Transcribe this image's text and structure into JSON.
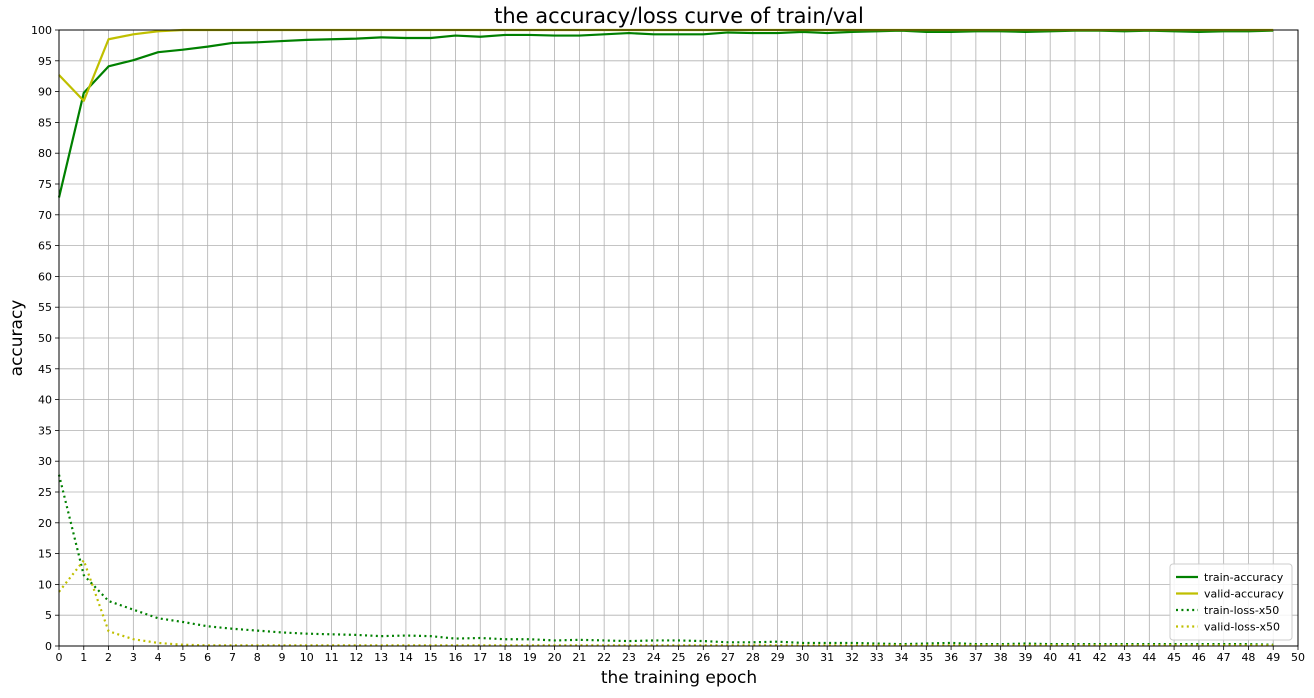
{
  "chart_data": {
    "type": "line",
    "title": "the accuracy/loss curve of train/val",
    "xlabel": "the training epoch",
    "ylabel": "accuracy",
    "xlim": [
      0,
      50
    ],
    "ylim": [
      0,
      100
    ],
    "xticks": [
      0,
      1,
      2,
      3,
      4,
      5,
      6,
      7,
      8,
      9,
      10,
      11,
      12,
      13,
      14,
      15,
      16,
      17,
      18,
      19,
      20,
      21,
      22,
      23,
      24,
      25,
      26,
      27,
      28,
      29,
      30,
      31,
      32,
      33,
      34,
      35,
      36,
      37,
      38,
      39,
      40,
      41,
      42,
      43,
      44,
      45,
      46,
      47,
      48,
      49,
      50
    ],
    "yticks": [
      0,
      5,
      10,
      15,
      20,
      25,
      30,
      35,
      40,
      45,
      50,
      55,
      60,
      65,
      70,
      75,
      80,
      85,
      90,
      95,
      100
    ],
    "grid": true,
    "legend_position": "lower-right",
    "x": [
      0,
      1,
      2,
      3,
      4,
      5,
      6,
      7,
      8,
      9,
      10,
      11,
      12,
      13,
      14,
      15,
      16,
      17,
      18,
      19,
      20,
      21,
      22,
      23,
      24,
      25,
      26,
      27,
      28,
      29,
      30,
      31,
      32,
      33,
      34,
      35,
      36,
      37,
      38,
      39,
      40,
      41,
      42,
      43,
      44,
      45,
      46,
      47,
      48,
      49
    ],
    "series": [
      {
        "name": "train-accuracy",
        "color": "#008000",
        "style": "solid",
        "values": [
          72.8,
          89.8,
          94.1,
          95.1,
          96.4,
          96.8,
          97.3,
          97.9,
          98.0,
          98.2,
          98.4,
          98.5,
          98.6,
          98.8,
          98.7,
          98.7,
          99.1,
          98.9,
          99.2,
          99.2,
          99.1,
          99.1,
          99.3,
          99.5,
          99.3,
          99.3,
          99.3,
          99.6,
          99.5,
          99.5,
          99.7,
          99.5,
          99.7,
          99.8,
          99.9,
          99.7,
          99.7,
          99.8,
          99.8,
          99.7,
          99.8,
          99.9,
          99.9,
          99.8,
          99.9,
          99.8,
          99.7,
          99.8,
          99.8,
          99.9
        ]
      },
      {
        "name": "valid-accuracy",
        "color": "#bfbf00",
        "style": "solid",
        "values": [
          92.7,
          88.5,
          98.5,
          99.3,
          99.8,
          100,
          100,
          100,
          100,
          100,
          100,
          100,
          100,
          100,
          100,
          100,
          100,
          100,
          100,
          100,
          100,
          100,
          100,
          100,
          100,
          100,
          100,
          100,
          100,
          100,
          100,
          100,
          100,
          100,
          100,
          100,
          100,
          100,
          100,
          100,
          100,
          100,
          100,
          100,
          100,
          100,
          100,
          100,
          100,
          100
        ]
      },
      {
        "name": "train-loss-x50",
        "color": "#008000",
        "style": "dotted",
        "values": [
          27.8,
          11.5,
          7.3,
          5.9,
          4.5,
          3.9,
          3.2,
          2.8,
          2.5,
          2.2,
          2.0,
          1.9,
          1.8,
          1.6,
          1.7,
          1.6,
          1.2,
          1.3,
          1.1,
          1.1,
          0.9,
          1.0,
          0.9,
          0.8,
          0.9,
          0.9,
          0.8,
          0.6,
          0.6,
          0.7,
          0.5,
          0.5,
          0.5,
          0.4,
          0.3,
          0.4,
          0.5,
          0.3,
          0.3,
          0.4,
          0.3,
          0.3,
          0.3,
          0.3,
          0.3,
          0.3,
          0.3,
          0.3,
          0.3,
          0.2
        ]
      },
      {
        "name": "valid-loss-x50",
        "color": "#bfbf00",
        "style": "dotted",
        "values": [
          8.8,
          13.9,
          2.4,
          1.1,
          0.5,
          0.2,
          0.1,
          0.1,
          0.1,
          0.1,
          0.1,
          0.1,
          0.1,
          0.1,
          0.1,
          0.1,
          0.1,
          0.1,
          0.1,
          0.1,
          0.1,
          0.1,
          0.1,
          0.1,
          0.1,
          0.1,
          0.1,
          0.1,
          0.1,
          0.1,
          0.1,
          0.1,
          0.1,
          0.1,
          0.1,
          0.1,
          0.1,
          0.1,
          0.1,
          0.1,
          0.1,
          0.1,
          0.1,
          0.1,
          0.1,
          0.1,
          0.1,
          0.1,
          0.1,
          0.1
        ]
      }
    ]
  }
}
